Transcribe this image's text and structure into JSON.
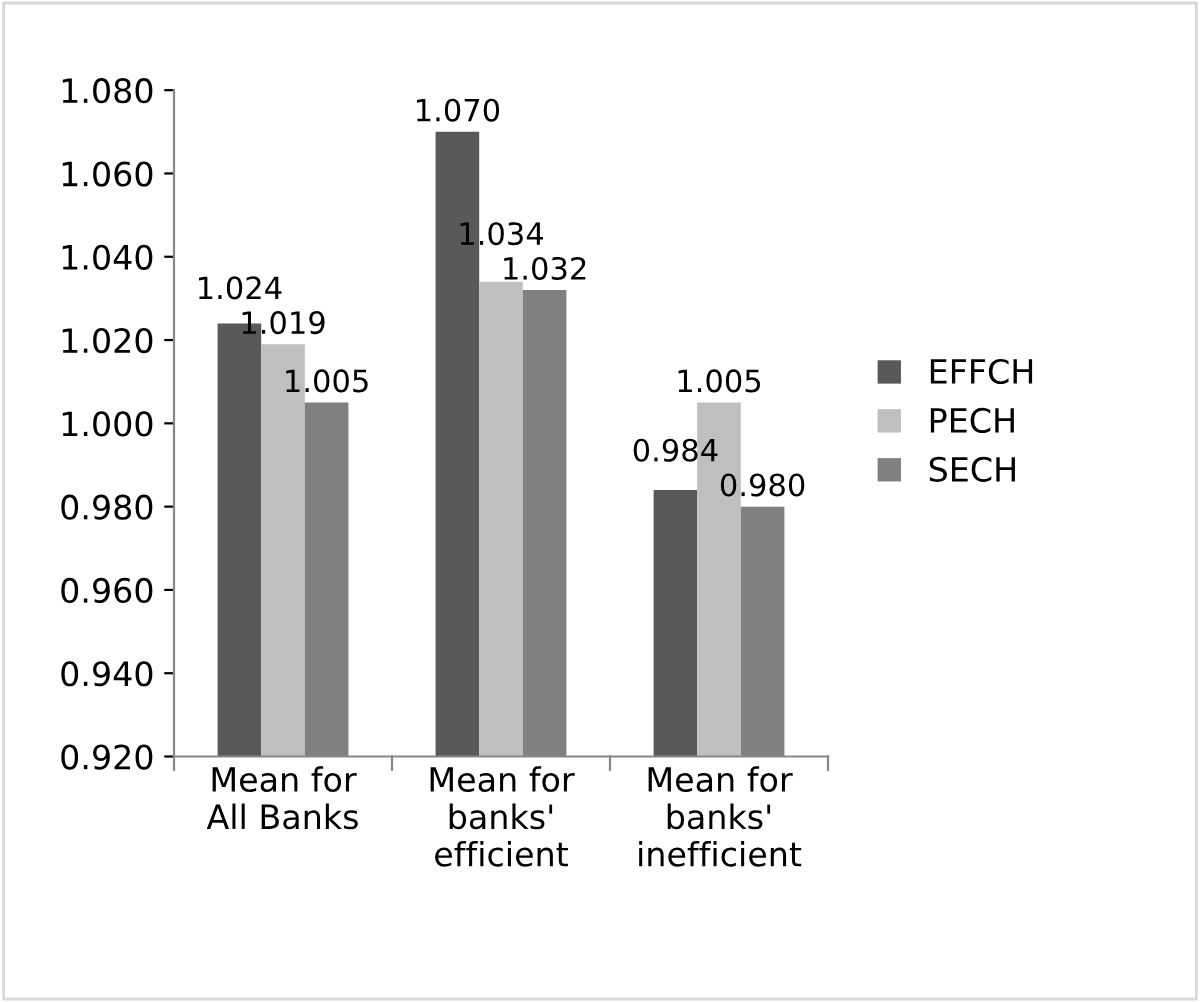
{
  "chart_data": {
    "type": "bar",
    "categories": [
      "Mean for\nAll Banks",
      "Mean for\nbanks'\nefficient",
      "Mean for\nbanks'\ninefficient"
    ],
    "series": [
      {
        "name": "EFFCH",
        "color": "#595959",
        "values": [
          1.024,
          1.07,
          0.984
        ]
      },
      {
        "name": "PECH",
        "color": "#bfbfbf",
        "values": [
          1.019,
          1.034,
          1.005
        ]
      },
      {
        "name": "SECH",
        "color": "#808080",
        "values": [
          1.005,
          1.032,
          0.98
        ]
      }
    ],
    "ylim": [
      0.92,
      1.08
    ],
    "yticks": [
      {
        "value": 0.92,
        "label": "0.920"
      },
      {
        "value": 0.94,
        "label": "0.940"
      },
      {
        "value": 0.96,
        "label": "0.960"
      },
      {
        "value": 0.98,
        "label": "0.980"
      },
      {
        "value": 1.0,
        "label": "1.000"
      },
      {
        "value": 1.02,
        "label": "1.020"
      },
      {
        "value": 1.04,
        "label": "1.040"
      },
      {
        "value": 1.06,
        "label": "1.060"
      },
      {
        "value": 1.08,
        "label": "1.080"
      }
    ],
    "value_labels": [
      [
        "1.024",
        "1.070",
        "0.984"
      ],
      [
        "1.019",
        "1.034",
        "1.005"
      ],
      [
        "1.005",
        "1.032",
        "0.980"
      ]
    ],
    "grid": false,
    "legend": "right"
  }
}
